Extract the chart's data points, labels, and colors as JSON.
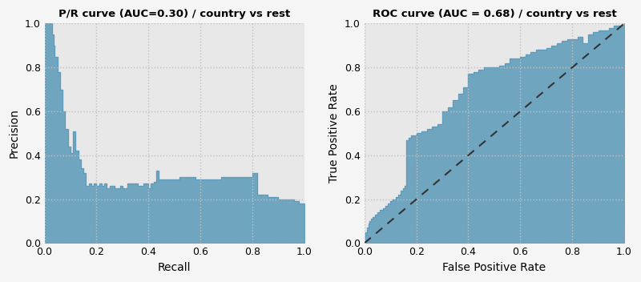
{
  "pr_title": "P/R curve (AUC=0.30) / country vs rest",
  "roc_title": "ROC curve (AUC = 0.68) / country vs rest",
  "pr_xlabel": "Recall",
  "pr_ylabel": "Precision",
  "roc_xlabel": "False Positive Rate",
  "roc_ylabel": "True Positive Rate",
  "fill_color": "#5b9aba",
  "fill_alpha": 0.85,
  "bg_color": "#e8e8e8",
  "fig_bg_color": "#f2f2f2",
  "grid_color": "#c8c8c8",
  "pr_recall": [
    0.0,
    0.01,
    0.02,
    0.03,
    0.035,
    0.04,
    0.05,
    0.06,
    0.07,
    0.08,
    0.09,
    0.1,
    0.11,
    0.12,
    0.13,
    0.14,
    0.15,
    0.16,
    0.17,
    0.18,
    0.19,
    0.2,
    0.21,
    0.22,
    0.23,
    0.24,
    0.25,
    0.27,
    0.29,
    0.3,
    0.32,
    0.34,
    0.36,
    0.38,
    0.4,
    0.41,
    0.42,
    0.43,
    0.44,
    0.46,
    0.48,
    0.5,
    0.52,
    0.54,
    0.56,
    0.58,
    0.6,
    0.62,
    0.64,
    0.66,
    0.68,
    0.7,
    0.72,
    0.74,
    0.76,
    0.78,
    0.8,
    0.82,
    0.84,
    0.86,
    0.88,
    0.9,
    0.92,
    0.94,
    0.96,
    0.98,
    1.0
  ],
  "pr_precision": [
    1.0,
    1.0,
    1.0,
    0.95,
    0.9,
    0.85,
    0.78,
    0.7,
    0.6,
    0.52,
    0.44,
    0.41,
    0.51,
    0.42,
    0.38,
    0.34,
    0.32,
    0.26,
    0.27,
    0.26,
    0.27,
    0.26,
    0.27,
    0.26,
    0.27,
    0.25,
    0.26,
    0.25,
    0.26,
    0.25,
    0.27,
    0.27,
    0.26,
    0.27,
    0.25,
    0.27,
    0.28,
    0.33,
    0.29,
    0.29,
    0.29,
    0.29,
    0.3,
    0.3,
    0.3,
    0.29,
    0.29,
    0.29,
    0.29,
    0.29,
    0.3,
    0.3,
    0.3,
    0.3,
    0.3,
    0.3,
    0.32,
    0.22,
    0.22,
    0.21,
    0.21,
    0.2,
    0.2,
    0.2,
    0.19,
    0.18,
    0.17
  ],
  "roc_fpr": [
    0.0,
    0.005,
    0.01,
    0.015,
    0.02,
    0.025,
    0.03,
    0.04,
    0.05,
    0.06,
    0.07,
    0.08,
    0.09,
    0.1,
    0.11,
    0.12,
    0.13,
    0.14,
    0.15,
    0.155,
    0.16,
    0.17,
    0.18,
    0.2,
    0.22,
    0.24,
    0.26,
    0.28,
    0.3,
    0.32,
    0.34,
    0.36,
    0.38,
    0.4,
    0.42,
    0.44,
    0.46,
    0.48,
    0.5,
    0.52,
    0.54,
    0.56,
    0.58,
    0.6,
    0.62,
    0.64,
    0.66,
    0.68,
    0.7,
    0.72,
    0.74,
    0.76,
    0.78,
    0.8,
    0.82,
    0.84,
    0.86,
    0.88,
    0.9,
    0.92,
    0.94,
    0.96,
    0.98,
    1.0
  ],
  "roc_tpr": [
    0.0,
    0.05,
    0.07,
    0.09,
    0.1,
    0.11,
    0.12,
    0.13,
    0.14,
    0.15,
    0.16,
    0.17,
    0.18,
    0.19,
    0.2,
    0.21,
    0.22,
    0.24,
    0.25,
    0.26,
    0.47,
    0.48,
    0.49,
    0.5,
    0.51,
    0.52,
    0.53,
    0.54,
    0.6,
    0.62,
    0.65,
    0.68,
    0.71,
    0.77,
    0.78,
    0.79,
    0.8,
    0.8,
    0.8,
    0.81,
    0.82,
    0.84,
    0.84,
    0.85,
    0.86,
    0.87,
    0.88,
    0.88,
    0.89,
    0.9,
    0.91,
    0.92,
    0.93,
    0.93,
    0.94,
    0.91,
    0.95,
    0.96,
    0.97,
    0.97,
    0.98,
    0.99,
    0.99,
    1.0
  ]
}
